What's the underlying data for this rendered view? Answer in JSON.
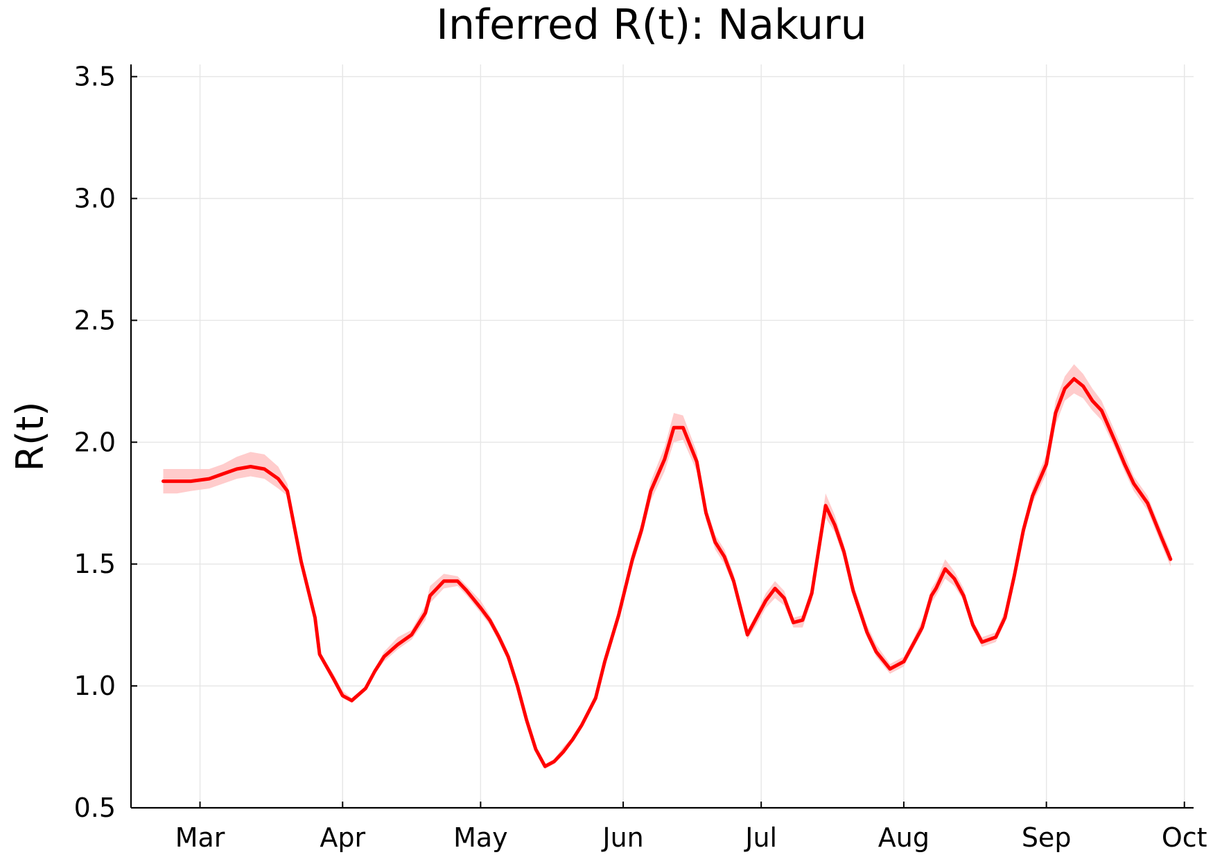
{
  "chart_data": {
    "type": "line",
    "title": "Inferred R(t): Nakuru",
    "xlabel": "",
    "ylabel": "R(t)",
    "ylim": [
      0.5,
      3.55
    ],
    "xlim": [
      "2020-02-15",
      "2020-10-03"
    ],
    "grid": true,
    "legend": "none",
    "y_ticks": [
      0.5,
      1.0,
      1.5,
      2.0,
      2.5,
      3.0,
      3.5
    ],
    "y_tick_labels": [
      "0.5",
      "1.0",
      "1.5",
      "2.0",
      "2.5",
      "3.0",
      "3.5"
    ],
    "x_ticks": [
      "2020-03-01",
      "2020-04-01",
      "2020-05-01",
      "2020-06-01",
      "2020-07-01",
      "2020-08-01",
      "2020-09-01",
      "2020-10-01"
    ],
    "x_tick_labels": [
      "Mar",
      "Apr",
      "May",
      "Jun",
      "Jul",
      "Aug",
      "Sep",
      "Oct"
    ],
    "colors": {
      "line": "#ff0000",
      "band": "#ffc7c7",
      "axis": "#000000",
      "grid": "#e6e6e6"
    },
    "series": [
      {
        "x": [
          "2020-02-22",
          "2020-02-25",
          "2020-02-28",
          "2020-03-03",
          "2020-03-06",
          "2020-03-09",
          "2020-03-12",
          "2020-03-15",
          "2020-03-18",
          "2020-03-20",
          "2020-03-23",
          "2020-03-26",
          "2020-03-27",
          "2020-03-30",
          "2020-04-01",
          "2020-04-03",
          "2020-04-06",
          "2020-04-08",
          "2020-04-10",
          "2020-04-13",
          "2020-04-16",
          "2020-04-19",
          "2020-04-20",
          "2020-04-23",
          "2020-04-26",
          "2020-04-28",
          "2020-05-01",
          "2020-05-03",
          "2020-05-05",
          "2020-05-07",
          "2020-05-09",
          "2020-05-11",
          "2020-05-13",
          "2020-05-15",
          "2020-05-17",
          "2020-05-19",
          "2020-05-21",
          "2020-05-23",
          "2020-05-26",
          "2020-05-28",
          "2020-05-31",
          "2020-06-03",
          "2020-06-05",
          "2020-06-07",
          "2020-06-10",
          "2020-06-12",
          "2020-06-14",
          "2020-06-17",
          "2020-06-19",
          "2020-06-21",
          "2020-06-23",
          "2020-06-25",
          "2020-06-28",
          "2020-06-30",
          "2020-07-02",
          "2020-07-04",
          "2020-07-06",
          "2020-07-08",
          "2020-07-10",
          "2020-07-12",
          "2020-07-13",
          "2020-07-15",
          "2020-07-17",
          "2020-07-19",
          "2020-07-21",
          "2020-07-24",
          "2020-07-26",
          "2020-07-29",
          "2020-08-01",
          "2020-08-03",
          "2020-08-05",
          "2020-08-07",
          "2020-08-08",
          "2020-08-10",
          "2020-08-12",
          "2020-08-14",
          "2020-08-16",
          "2020-08-18",
          "2020-08-21",
          "2020-08-23",
          "2020-08-25",
          "2020-08-27",
          "2020-08-29",
          "2020-09-01",
          "2020-09-03",
          "2020-09-05",
          "2020-09-07",
          "2020-09-09",
          "2020-09-11",
          "2020-09-13",
          "2020-09-16",
          "2020-09-18",
          "2020-09-20",
          "2020-09-23",
          "2020-09-26",
          "2020-09-28"
        ],
        "y": [
          1.84,
          1.84,
          1.84,
          1.85,
          1.87,
          1.89,
          1.9,
          1.89,
          1.85,
          1.8,
          1.51,
          1.28,
          1.13,
          1.03,
          0.96,
          0.94,
          0.99,
          1.06,
          1.12,
          1.17,
          1.21,
          1.3,
          1.37,
          1.43,
          1.43,
          1.39,
          1.32,
          1.27,
          1.2,
          1.12,
          1.0,
          0.86,
          0.74,
          0.67,
          0.69,
          0.73,
          0.78,
          0.84,
          0.95,
          1.1,
          1.29,
          1.52,
          1.64,
          1.8,
          1.93,
          2.06,
          2.06,
          1.92,
          1.71,
          1.59,
          1.53,
          1.43,
          1.21,
          1.28,
          1.35,
          1.4,
          1.36,
          1.26,
          1.27,
          1.38,
          1.5,
          1.74,
          1.66,
          1.55,
          1.39,
          1.22,
          1.14,
          1.07,
          1.1,
          1.17,
          1.24,
          1.37,
          1.4,
          1.48,
          1.44,
          1.37,
          1.25,
          1.18,
          1.2,
          1.28,
          1.45,
          1.64,
          1.78,
          1.91,
          2.12,
          2.22,
          2.26,
          2.23,
          2.17,
          2.13,
          2.0,
          1.91,
          1.83,
          1.75,
          1.61,
          1.52
        ],
        "lower": [
          1.79,
          1.79,
          1.8,
          1.81,
          1.83,
          1.85,
          1.86,
          1.85,
          1.81,
          1.78,
          1.5,
          1.27,
          1.12,
          1.02,
          0.95,
          0.93,
          0.98,
          1.05,
          1.1,
          1.15,
          1.19,
          1.27,
          1.34,
          1.4,
          1.41,
          1.37,
          1.3,
          1.25,
          1.18,
          1.1,
          0.99,
          0.85,
          0.73,
          0.66,
          0.68,
          0.72,
          0.77,
          0.83,
          0.94,
          1.09,
          1.27,
          1.49,
          1.61,
          1.76,
          1.88,
          2.0,
          2.01,
          1.88,
          1.68,
          1.56,
          1.5,
          1.41,
          1.19,
          1.25,
          1.32,
          1.36,
          1.33,
          1.24,
          1.24,
          1.35,
          1.47,
          1.69,
          1.63,
          1.52,
          1.37,
          1.2,
          1.12,
          1.05,
          1.08,
          1.15,
          1.22,
          1.34,
          1.37,
          1.44,
          1.41,
          1.35,
          1.23,
          1.16,
          1.18,
          1.26,
          1.43,
          1.61,
          1.75,
          1.87,
          2.07,
          2.17,
          2.2,
          2.18,
          2.13,
          2.09,
          1.97,
          1.88,
          1.8,
          1.72,
          1.58,
          1.49
        ],
        "upper": [
          1.89,
          1.89,
          1.89,
          1.89,
          1.91,
          1.94,
          1.96,
          1.95,
          1.9,
          1.83,
          1.53,
          1.3,
          1.14,
          1.05,
          0.98,
          0.95,
          1.0,
          1.07,
          1.14,
          1.2,
          1.23,
          1.33,
          1.41,
          1.46,
          1.45,
          1.41,
          1.35,
          1.29,
          1.22,
          1.14,
          1.01,
          0.88,
          0.75,
          0.68,
          0.7,
          0.75,
          0.79,
          0.85,
          0.97,
          1.12,
          1.31,
          1.55,
          1.67,
          1.84,
          1.98,
          2.12,
          2.11,
          1.96,
          1.74,
          1.62,
          1.56,
          1.46,
          1.23,
          1.3,
          1.38,
          1.43,
          1.39,
          1.28,
          1.29,
          1.41,
          1.54,
          1.79,
          1.7,
          1.58,
          1.42,
          1.25,
          1.17,
          1.09,
          1.12,
          1.19,
          1.27,
          1.4,
          1.43,
          1.52,
          1.47,
          1.4,
          1.27,
          1.2,
          1.22,
          1.31,
          1.47,
          1.67,
          1.81,
          1.95,
          2.17,
          2.27,
          2.32,
          2.28,
          2.22,
          2.17,
          2.04,
          1.95,
          1.86,
          1.78,
          1.64,
          1.55
        ]
      }
    ]
  }
}
